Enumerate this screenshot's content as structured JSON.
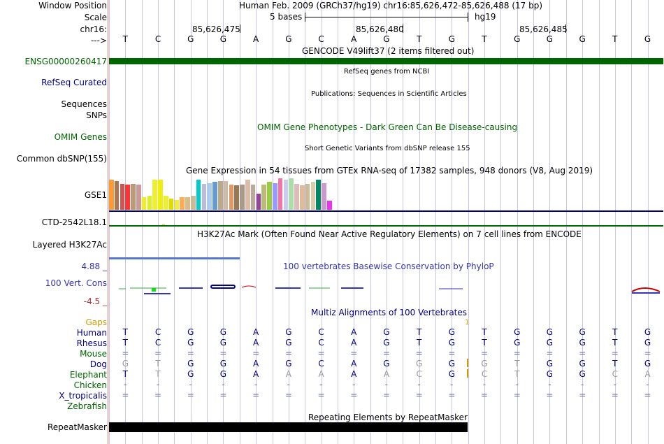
{
  "header": {
    "window_position_label": "Window Position",
    "scale_label": "Scale",
    "chrom_label": "chr16:",
    "strand_label": "--->",
    "position_title": "Human Feb. 2009 (GRCh37/hg19)   chr16:85,626,472-85,626,488 (17 bp)",
    "scale_text": "5 bases",
    "assembly": "hg19",
    "ticks": [
      "85,626,475",
      "85,626,480",
      "85,626,485"
    ]
  },
  "sequence": [
    "T",
    "C",
    "G",
    "G",
    "A",
    "G",
    "C",
    "A",
    "G",
    "T",
    "G",
    "T",
    "G",
    "G",
    "G",
    "T",
    "G"
  ],
  "tracks": {
    "gencode_title": "GENCODE V49lift37 (2 items filtered out)",
    "gencode_label": "ENSG00000260417",
    "refseq_title": "RefSeq genes from NCBI",
    "refseq_label": "RefSeq Curated",
    "pubs_title": "Publications: Sequences in Scientific Articles",
    "sequences_label": "Sequences",
    "snps_label": "SNPs",
    "omim_title": "OMIM Gene Phenotypes - Dark Green Can Be Disease-causing",
    "omim_label": "OMIM Genes",
    "dbsnp_title": "Short Genetic Variants from dbSNP release 155",
    "dbsnp_label": "Common dbSNP(155)",
    "gtex_title": "Gene Expression in 54 tissues from GTEx RNA-seq of 17382 samples, 948 donors (V8, Aug 2019)",
    "gtex_label": "GSE1",
    "ctd_label": "CTD-2542L18.1",
    "h3k_title": "H3K27Ac Mark (Often Found Near Active Regulatory Elements) on 7 cell lines from ENCODE",
    "h3k_label": "Layered H3K27Ac",
    "phylop_title": "100 vertebrates Basewise Conservation by PhyloP",
    "phylop_label": "100 Vert. Cons",
    "phylop_max": "4.88 _",
    "phylop_min": "-4.5 _",
    "multiz_title": "Multiz Alignments of 100 Vertebrates",
    "gaps_label": "Gaps",
    "gaps_value": "1",
    "repeat_title": "Repeating Elements by RepeatMasker",
    "repeat_label": "RepeatMasker"
  },
  "gtex_bars": {
    "colors": [
      "#ff9933",
      "#aa7755",
      "#cc5555",
      "#ff3333",
      "#bb9977",
      "#cc9999",
      "#eeee22",
      "#ddee22",
      "#eeee33",
      "#eeee11",
      "#eeee33",
      "#dddd00",
      "#eeee44",
      "#ffaa55",
      "#ddbb88",
      "#ccbb99",
      "#00cccc",
      "#bbbbdd",
      "#aaccee",
      "#6699cc",
      "#bbaa88",
      "#ccbbaa",
      "#dd9966",
      "#997755",
      "#aa9988",
      "#ddbbaa",
      "#bbaa99",
      "#994499",
      "#bbbb77",
      "#99cc44",
      "#9999ff",
      "#ee77aa",
      "#ccccee",
      "#aaddaa",
      "#ddbbbb",
      "#ddbb99",
      "#ccbb99",
      "#ddccaa",
      "#008866",
      "#cc99cc",
      "#ee33ee"
    ],
    "values": [
      0.95,
      0.9,
      0.82,
      0.8,
      0.82,
      0.8,
      0.4,
      0.45,
      0.95,
      0.95,
      0.45,
      0.35,
      0.3,
      0.4,
      0.4,
      0.45,
      0.95,
      0.82,
      0.85,
      0.88,
      0.9,
      0.9,
      0.8,
      0.78,
      0.8,
      0.95,
      0.8,
      0.5,
      0.8,
      0.88,
      0.85,
      1.0,
      0.95,
      1.0,
      0.82,
      0.78,
      0.82,
      0.88,
      0.95,
      0.85,
      0.28
    ]
  },
  "multiz": {
    "species": [
      {
        "name": "Human",
        "color": "#000080",
        "row": [
          "T",
          "C",
          "G",
          "G",
          "A",
          "G",
          "C",
          "A",
          "G",
          "T",
          "G",
          "T",
          "G",
          "G",
          "G",
          "T",
          "G"
        ],
        "dim": []
      },
      {
        "name": "Rhesus",
        "color": "#000080",
        "row": [
          "T",
          "C",
          "G",
          "G",
          "A",
          "G",
          "C",
          "A",
          "G",
          "T",
          "G",
          "T",
          "G",
          "G",
          "G",
          "T",
          "G"
        ],
        "dim": []
      },
      {
        "name": "Mouse",
        "color": "#006400",
        "row": [
          "=",
          "=",
          "=",
          "=",
          "=",
          "=",
          "=",
          "=",
          "=",
          "=",
          "=",
          "=",
          "=",
          "=",
          "=",
          "=",
          "="
        ],
        "dim": []
      },
      {
        "name": "Dog",
        "color": "#000080",
        "row": [
          "G",
          "T",
          "G",
          "G",
          "A",
          "G",
          "C",
          "A",
          "G",
          "G",
          "G",
          "G",
          "T",
          "G",
          "G",
          "T",
          "G"
        ],
        "dim": [
          0,
          1,
          9,
          11,
          12
        ]
      },
      {
        "name": "Elephant",
        "color": "#006400",
        "row": [
          "T",
          "T",
          "G",
          "G",
          "A",
          "A",
          "A",
          "A",
          "A",
          "C",
          "G",
          "C",
          "T",
          "G",
          "G",
          "C",
          "A"
        ],
        "dim": [
          1,
          5,
          6,
          8,
          9,
          11,
          12,
          15,
          16
        ]
      },
      {
        "name": "Chicken",
        "color": "#006400",
        "row": [
          "-",
          "-",
          "-",
          "-",
          "-",
          "-",
          "-",
          "-",
          "-",
          "-",
          "-",
          "-",
          "-",
          "-",
          "-",
          "-",
          "-"
        ],
        "dim": []
      },
      {
        "name": "X_tropicalis",
        "color": "#000080",
        "row": [
          "=",
          "=",
          "=",
          "=",
          "=",
          "=",
          "=",
          "=",
          "=",
          "=",
          "=",
          "=",
          "=",
          "=",
          "=",
          "=",
          "="
        ],
        "dim": []
      },
      {
        "name": "Zebrafish",
        "color": "#006400",
        "row": [
          "",
          "",
          "",
          "",
          "",
          "",
          "",
          "",
          "",
          "",
          "",
          "",
          "",
          "",
          "",
          "",
          ""
        ],
        "dim": []
      }
    ]
  },
  "colors": {
    "label_blue": "#000080",
    "label_green": "#006400",
    "gene_green": "#006400",
    "phylop_blue": "#000099",
    "phylop_red": "#cc0000",
    "gaps_orange": "#cc9900",
    "separator_red": "#d26e6e"
  }
}
